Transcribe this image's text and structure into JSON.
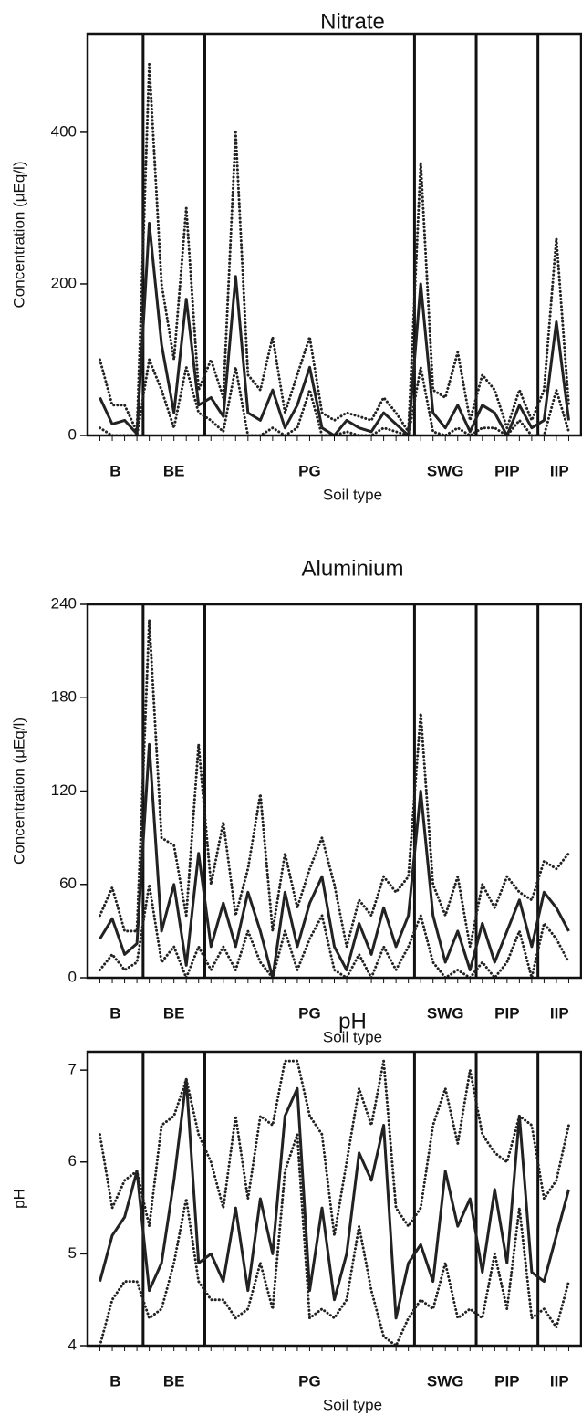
{
  "chart_data": [
    {
      "type": "line",
      "title": "Nitrate",
      "y_label": "Concentration (μEq/l)",
      "x_label": "Soil type",
      "x": [
        1,
        2,
        3,
        4,
        5,
        6,
        7,
        8,
        9,
        10,
        11,
        12,
        13,
        14,
        15,
        16,
        17,
        18,
        19,
        20,
        21,
        22,
        23,
        24,
        25,
        26,
        27,
        28,
        29,
        30,
        31,
        32,
        33,
        34,
        35,
        36,
        37,
        38,
        39
      ],
      "xlim": [
        0,
        40
      ],
      "ylim": [
        0,
        530
      ],
      "yticks": [
        0,
        200,
        400
      ],
      "sections": {
        "labels": [
          "B",
          "BE",
          "PG",
          "SWG",
          "PIP",
          "IIP"
        ],
        "dividers": [
          4.5,
          9.5,
          26.5,
          31.5,
          36.5
        ]
      },
      "series": [
        {
          "color": "#222",
          "line_style": "dotted",
          "values": [
            100,
            40,
            40,
            5,
            490,
            200,
            100,
            300,
            60,
            100,
            50,
            400,
            80,
            60,
            130,
            30,
            80,
            130,
            30,
            20,
            30,
            25,
            20,
            50,
            30,
            5,
            360,
            60,
            50,
            110,
            20,
            80,
            60,
            10,
            60,
            20,
            60,
            260,
            40
          ]
        },
        {
          "color": "#222",
          "line_style": "solid",
          "values": [
            50,
            15,
            20,
            2,
            280,
            120,
            30,
            180,
            40,
            50,
            25,
            210,
            30,
            20,
            60,
            10,
            40,
            90,
            10,
            0,
            20,
            10,
            5,
            30,
            15,
            0,
            200,
            30,
            10,
            40,
            5,
            40,
            30,
            0,
            40,
            10,
            20,
            150,
            20
          ]
        },
        {
          "color": "#222",
          "line_style": "dotted",
          "values": [
            10,
            0,
            0,
            0,
            100,
            60,
            10,
            90,
            30,
            20,
            5,
            90,
            0,
            0,
            10,
            0,
            10,
            60,
            0,
            0,
            5,
            0,
            0,
            10,
            5,
            0,
            90,
            5,
            0,
            10,
            0,
            10,
            10,
            0,
            20,
            0,
            0,
            60,
            5
          ]
        }
      ]
    },
    {
      "type": "line",
      "title": "Aluminium",
      "y_label": "Concentration (μEq/l)",
      "x_label": "Soil type",
      "x": [
        1,
        2,
        3,
        4,
        5,
        6,
        7,
        8,
        9,
        10,
        11,
        12,
        13,
        14,
        15,
        16,
        17,
        18,
        19,
        20,
        21,
        22,
        23,
        24,
        25,
        26,
        27,
        28,
        29,
        30,
        31,
        32,
        33,
        34,
        35,
        36,
        37,
        38,
        39
      ],
      "xlim": [
        0,
        40
      ],
      "ylim": [
        0,
        240
      ],
      "yticks": [
        0,
        60,
        120,
        180,
        240
      ],
      "sections": {
        "labels": [
          "B",
          "BE",
          "PG",
          "SWG",
          "PIP",
          "IIP"
        ],
        "dividers": [
          4.5,
          9.5,
          26.5,
          31.5,
          36.5
        ]
      },
      "series": [
        {
          "color": "#222",
          "line_style": "dotted",
          "values": [
            40,
            58,
            30,
            30,
            230,
            90,
            85,
            40,
            150,
            60,
            100,
            40,
            70,
            118,
            30,
            80,
            45,
            70,
            90,
            60,
            20,
            50,
            40,
            65,
            55,
            65,
            170,
            60,
            40,
            65,
            20,
            60,
            45,
            65,
            55,
            50,
            75,
            70,
            80
          ]
        },
        {
          "color": "#222",
          "line_style": "solid",
          "values": [
            25,
            38,
            15,
            22,
            150,
            30,
            60,
            8,
            80,
            20,
            48,
            20,
            55,
            30,
            0,
            55,
            20,
            48,
            65,
            20,
            5,
            35,
            15,
            45,
            20,
            40,
            120,
            40,
            10,
            30,
            5,
            35,
            10,
            30,
            50,
            20,
            55,
            45,
            30
          ]
        },
        {
          "color": "#222",
          "line_style": "dotted",
          "values": [
            5,
            15,
            5,
            10,
            60,
            10,
            20,
            0,
            20,
            5,
            20,
            5,
            30,
            10,
            0,
            30,
            5,
            25,
            40,
            5,
            0,
            15,
            0,
            20,
            5,
            20,
            40,
            10,
            0,
            5,
            0,
            10,
            0,
            10,
            30,
            0,
            35,
            25,
            10
          ]
        }
      ]
    },
    {
      "type": "line",
      "title": "pH",
      "y_label": "pH",
      "x_label": "Soil type",
      "x": [
        1,
        2,
        3,
        4,
        5,
        6,
        7,
        8,
        9,
        10,
        11,
        12,
        13,
        14,
        15,
        16,
        17,
        18,
        19,
        20,
        21,
        22,
        23,
        24,
        25,
        26,
        27,
        28,
        29,
        30,
        31,
        32,
        33,
        34,
        35,
        36,
        37,
        38,
        39
      ],
      "xlim": [
        0,
        40
      ],
      "ylim": [
        4,
        7.2
      ],
      "yticks": [
        4,
        5,
        6,
        7
      ],
      "sections": {
        "labels": [
          "B",
          "BE",
          "PG",
          "SWG",
          "PIP",
          "IIP"
        ],
        "dividers": [
          4.5,
          9.5,
          26.5,
          31.5,
          36.5
        ]
      },
      "series": [
        {
          "color": "#222",
          "line_style": "dotted",
          "values": [
            6.3,
            5.5,
            5.8,
            5.9,
            5.3,
            6.4,
            6.5,
            6.9,
            6.3,
            6.0,
            5.5,
            6.5,
            5.6,
            6.5,
            6.4,
            7.1,
            7.1,
            6.5,
            6.3,
            5.2,
            6.0,
            6.8,
            6.4,
            7.1,
            5.5,
            5.3,
            5.5,
            6.4,
            6.8,
            6.2,
            7.0,
            6.3,
            6.1,
            6.0,
            6.5,
            6.4,
            5.6,
            5.8,
            6.4
          ]
        },
        {
          "color": "#222",
          "line_style": "solid",
          "values": [
            4.7,
            5.2,
            5.4,
            5.9,
            4.6,
            4.9,
            5.8,
            6.9,
            4.9,
            5.0,
            4.7,
            5.5,
            4.6,
            5.6,
            5.0,
            6.5,
            6.8,
            4.6,
            5.5,
            4.5,
            5.0,
            6.1,
            5.8,
            6.4,
            4.3,
            4.9,
            5.1,
            4.7,
            5.9,
            5.3,
            5.6,
            4.8,
            5.7,
            4.9,
            6.5,
            4.8,
            4.7,
            5.2,
            5.7
          ]
        },
        {
          "color": "#222",
          "line_style": "dotted",
          "values": [
            4.0,
            4.5,
            4.7,
            4.7,
            4.3,
            4.4,
            4.9,
            5.6,
            4.7,
            4.5,
            4.5,
            4.3,
            4.4,
            4.9,
            4.4,
            5.9,
            6.3,
            4.3,
            4.4,
            4.3,
            4.5,
            5.3,
            4.6,
            4.1,
            4.0,
            4.3,
            4.5,
            4.4,
            4.9,
            4.3,
            4.4,
            4.3,
            5.0,
            4.4,
            5.5,
            4.3,
            4.4,
            4.2,
            4.7
          ]
        }
      ]
    }
  ]
}
